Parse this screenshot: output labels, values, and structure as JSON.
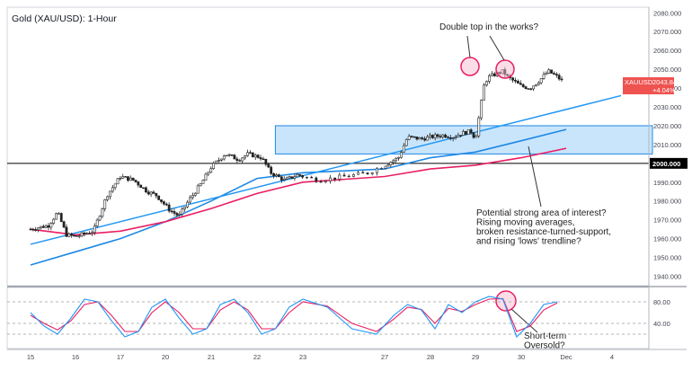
{
  "chart_title": "Gold (XAU/USD): 1-Hour",
  "chart_data": {
    "type": "candlestick",
    "title": "Gold (XAU/USD): 1-Hour",
    "symbol": "XAUUSD",
    "last_price": "2043.845",
    "change": "+4.04%",
    "y_axis": {
      "range": [
        1935,
        2083
      ],
      "ticks": [
        "2080.000",
        "2070.000",
        "2060.000",
        "2050.000",
        "2040.000",
        "2030.000",
        "2020.000",
        "2010.000",
        "2000.000",
        "1990.000",
        "1980.000",
        "1970.000",
        "1960.000",
        "1950.000",
        "1940.000"
      ],
      "highlighted_level": "2000.000"
    },
    "x_axis": {
      "ticks": [
        "15",
        "16",
        "17",
        "20",
        "21",
        "22",
        "23",
        "27",
        "28",
        "29",
        "30",
        "Dec",
        "4"
      ]
    },
    "price_path": [
      [
        15.0,
        1965
      ],
      [
        15.4,
        1967
      ],
      [
        15.6,
        1974
      ],
      [
        15.8,
        1962
      ],
      [
        16.0,
        1961
      ],
      [
        16.4,
        1964
      ],
      [
        16.7,
        1983
      ],
      [
        17.0,
        1993
      ],
      [
        17.3,
        1991
      ],
      [
        17.6,
        1985
      ],
      [
        17.8,
        1983
      ],
      [
        18.1,
        1975
      ],
      [
        18.3,
        1972
      ],
      [
        18.5,
        1980
      ],
      [
        18.8,
        1990
      ],
      [
        19.0,
        1998
      ],
      [
        19.3,
        2005
      ],
      [
        19.6,
        2002
      ],
      [
        19.8,
        2005
      ],
      [
        20.1,
        2003
      ],
      [
        20.3,
        1995
      ],
      [
        20.6,
        1991
      ],
      [
        20.9,
        1994
      ],
      [
        21.2,
        1991
      ],
      [
        21.5,
        1993
      ],
      [
        21.8,
        1995
      ],
      [
        22.0,
        1999
      ],
      [
        22.3,
        2003
      ],
      [
        22.5,
        2014
      ],
      [
        22.8,
        2013
      ],
      [
        23.0,
        2014
      ],
      [
        23.3,
        2015
      ],
      [
        23.5,
        2014
      ],
      [
        23.7,
        2016
      ],
      [
        23.9,
        2017
      ],
      [
        24.0,
        2013
      ],
      [
        24.2,
        2043
      ],
      [
        24.3,
        2046
      ],
      [
        24.6,
        2049
      ],
      [
        24.7,
        2046
      ],
      [
        25.0,
        2041
      ],
      [
        25.2,
        2040
      ],
      [
        25.4,
        2044
      ],
      [
        25.6,
        2049
      ],
      [
        25.8,
        2046
      ],
      [
        25.9,
        2044
      ]
    ],
    "moving_averages": [
      {
        "color": "#1e88e5",
        "points": [
          [
            15.0,
            1946
          ],
          [
            16.0,
            1953
          ],
          [
            17.0,
            1960
          ],
          [
            18.0,
            1969
          ],
          [
            19.0,
            1980
          ],
          [
            20.0,
            1992
          ],
          [
            21.0,
            1995
          ],
          [
            22.0,
            1997
          ],
          [
            23.0,
            2003
          ],
          [
            24.0,
            2006
          ],
          [
            25.0,
            2012
          ],
          [
            26.0,
            2018
          ]
        ]
      },
      {
        "color": "#e91e63",
        "points": [
          [
            15.0,
            1965
          ],
          [
            16.0,
            1962
          ],
          [
            17.0,
            1964
          ],
          [
            18.0,
            1969
          ],
          [
            19.0,
            1976
          ],
          [
            20.0,
            1984
          ],
          [
            21.0,
            1990
          ],
          [
            22.0,
            1993
          ],
          [
            23.0,
            1997
          ],
          [
            24.0,
            1999
          ],
          [
            25.0,
            2003
          ],
          [
            26.0,
            2008
          ]
        ]
      }
    ],
    "trendline": {
      "color": "#2196f3",
      "from": [
        15.0,
        1957
      ],
      "to": [
        27.2,
        2036
      ]
    },
    "zone": {
      "x_from": 20.4,
      "x_to": 29.9,
      "y_low": 2005,
      "y_high": 2020
    },
    "oscillator": {
      "levels": [
        "80.00",
        "40.00"
      ],
      "range": [
        0,
        100
      ],
      "dashed_levels": [
        80,
        40,
        20
      ],
      "k_line": [
        [
          15.0,
          60
        ],
        [
          15.3,
          35
        ],
        [
          15.6,
          20
        ],
        [
          15.9,
          50
        ],
        [
          16.2,
          85
        ],
        [
          16.5,
          80
        ],
        [
          16.8,
          45
        ],
        [
          17.1,
          15
        ],
        [
          17.4,
          25
        ],
        [
          17.7,
          70
        ],
        [
          18.0,
          85
        ],
        [
          18.3,
          50
        ],
        [
          18.6,
          20
        ],
        [
          18.9,
          30
        ],
        [
          19.2,
          75
        ],
        [
          19.5,
          85
        ],
        [
          19.8,
          60
        ],
        [
          20.1,
          20
        ],
        [
          20.4,
          30
        ],
        [
          20.7,
          70
        ],
        [
          21.0,
          85
        ],
        [
          21.3,
          70
        ],
        [
          21.6,
          30
        ],
        [
          21.9,
          20
        ],
        [
          22.2,
          55
        ],
        [
          22.5,
          75
        ],
        [
          22.8,
          65
        ],
        [
          23.1,
          30
        ],
        [
          23.4,
          75
        ],
        [
          23.7,
          60
        ],
        [
          24.0,
          80
        ],
        [
          24.3,
          90
        ],
        [
          24.6,
          85
        ],
        [
          24.9,
          15
        ],
        [
          25.2,
          40
        ],
        [
          25.5,
          75
        ],
        [
          25.8,
          80
        ]
      ],
      "d_line": [
        [
          15.0,
          55
        ],
        [
          15.3,
          40
        ],
        [
          15.6,
          28
        ],
        [
          15.9,
          45
        ],
        [
          16.2,
          75
        ],
        [
          16.5,
          80
        ],
        [
          16.8,
          55
        ],
        [
          17.1,
          25
        ],
        [
          17.4,
          25
        ],
        [
          17.7,
          60
        ],
        [
          18.0,
          80
        ],
        [
          18.3,
          60
        ],
        [
          18.6,
          30
        ],
        [
          18.9,
          30
        ],
        [
          19.2,
          65
        ],
        [
          19.5,
          80
        ],
        [
          19.8,
          65
        ],
        [
          20.1,
          30
        ],
        [
          20.4,
          30
        ],
        [
          20.7,
          60
        ],
        [
          21.0,
          80
        ],
        [
          21.3,
          72
        ],
        [
          21.6,
          40
        ],
        [
          21.9,
          25
        ],
        [
          22.2,
          48
        ],
        [
          22.5,
          70
        ],
        [
          22.8,
          66
        ],
        [
          23.1,
          40
        ],
        [
          23.4,
          68
        ],
        [
          23.7,
          62
        ],
        [
          24.0,
          75
        ],
        [
          24.3,
          85
        ],
        [
          24.6,
          86
        ],
        [
          24.9,
          25
        ],
        [
          25.2,
          35
        ],
        [
          25.5,
          65
        ],
        [
          25.8,
          78
        ]
      ]
    },
    "annotations": {
      "double_top": "Double top in the works?",
      "interest": [
        "Potential strong area of interest?",
        "Rising moving averages,",
        "broken resistance-turned-support,",
        "and rising 'lows' trendline?"
      ],
      "oversold": [
        "Short-term",
        "Oversold?"
      ]
    }
  }
}
